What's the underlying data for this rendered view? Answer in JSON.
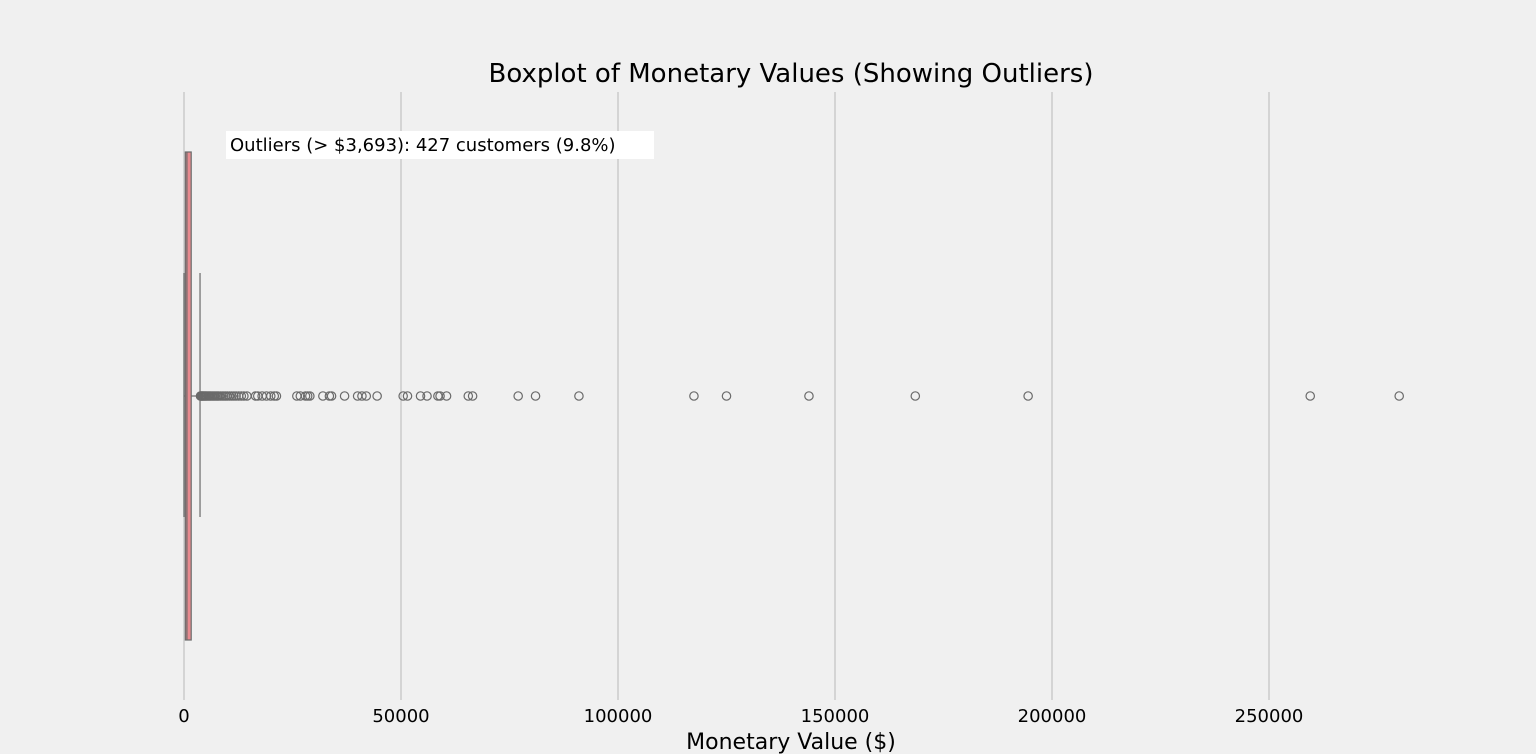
{
  "chart_data": {
    "type": "boxplot",
    "title": "Boxplot of Monetary Values (Showing Outliers)",
    "xlabel": "Monetary Value ($)",
    "ylabel": "",
    "xlim": [
      -2000,
      310000
    ],
    "xticks": [
      0,
      50000,
      100000,
      150000,
      200000,
      250000
    ],
    "xtick_labels": [
      "0",
      "50000",
      "100000",
      "150000",
      "200000",
      "250000"
    ],
    "grid": "vertical",
    "annotation": "Outliers (> $3,693): 427 customers (9.8%)",
    "box": {
      "whisker_low": 0,
      "q1": 300,
      "median": 670,
      "q3": 1660,
      "whisker_high": 3693,
      "fill_color": "#e88a8f",
      "edge_color": "#6a6a6a"
    },
    "outliers": [
      3800,
      3950,
      4100,
      4250,
      4400,
      4600,
      4800,
      5000,
      5200,
      5450,
      5700,
      5950,
      6200,
      6500,
      6800,
      7100,
      7400,
      7700,
      8000,
      8400,
      8800,
      9200,
      9600,
      10000,
      10500,
      11000,
      11500,
      12000,
      12600,
      13200,
      13800,
      14500,
      16500,
      17000,
      18000,
      19000,
      20000,
      20800,
      21300,
      26000,
      26800,
      28000,
      28500,
      29000,
      32000,
      33500,
      34000,
      37000,
      40000,
      41000,
      42000,
      44500,
      50500,
      51500,
      54500,
      56000,
      58500,
      59000,
      60500,
      65500,
      66500,
      77000,
      81000,
      91000,
      117500,
      125000,
      144000,
      168500,
      194500,
      259500,
      280000
    ],
    "colors": {
      "background": "#f0f0f0",
      "grid": "#cbcbcb",
      "outlier_edge": "#6a6a6a"
    }
  }
}
